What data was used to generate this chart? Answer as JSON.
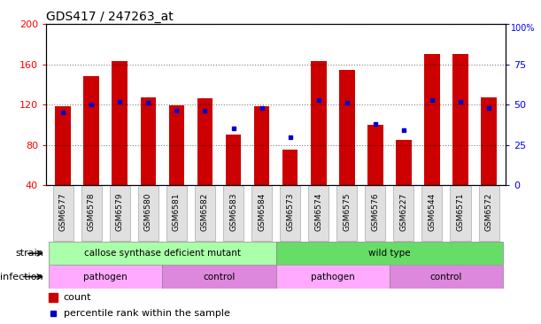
{
  "title": "GDS417 / 247263_at",
  "samples": [
    "GSM6577",
    "GSM6578",
    "GSM6579",
    "GSM6580",
    "GSM6581",
    "GSM6582",
    "GSM6583",
    "GSM6584",
    "GSM6573",
    "GSM6574",
    "GSM6575",
    "GSM6576",
    "GSM6227",
    "GSM6544",
    "GSM6571",
    "GSM6572"
  ],
  "counts": [
    118,
    148,
    163,
    127,
    119,
    126,
    90,
    118,
    75,
    163,
    155,
    100,
    85,
    170,
    170,
    127
  ],
  "percentiles": [
    45,
    50,
    52,
    51,
    46,
    46,
    35,
    48,
    30,
    53,
    51,
    38,
    34,
    53,
    52,
    48
  ],
  "bar_color": "#cc0000",
  "percentile_color": "#0000cc",
  "ylim_left": [
    40,
    200
  ],
  "ylim_right": [
    0,
    100
  ],
  "yticks_left": [
    40,
    80,
    120,
    160,
    200
  ],
  "yticks_right": [
    0,
    25,
    50,
    75,
    100
  ],
  "strain_groups": [
    {
      "label": "callose synthase deficient mutant",
      "color": "#aaffaa",
      "start": 0,
      "end": 8
    },
    {
      "label": "wild type",
      "color": "#66dd66",
      "start": 8,
      "end": 16
    }
  ],
  "infection_groups": [
    {
      "label": "pathogen",
      "color": "#ffaaff",
      "start": 0,
      "end": 4
    },
    {
      "label": "control",
      "color": "#dd88dd",
      "start": 4,
      "end": 8
    },
    {
      "label": "pathogen",
      "color": "#ffaaff",
      "start": 8,
      "end": 12
    },
    {
      "label": "control",
      "color": "#dd88dd",
      "start": 12,
      "end": 16
    }
  ],
  "tick_label_fontsize": 6.5,
  "title_fontsize": 10,
  "bar_width": 0.55
}
